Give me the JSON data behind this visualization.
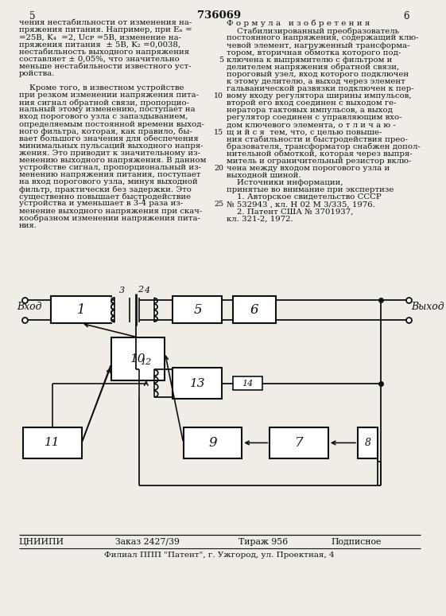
{
  "page_number_left": "5",
  "page_number_center": "736069",
  "page_number_right": "6",
  "bg_color": "#f0ede6",
  "text_color": "#1a1a1a",
  "footer_left": "ЦНИИПИ",
  "footer_order": "Заказ 2427/39",
  "footer_print": "Тираж 956",
  "footer_sign": "Подписное",
  "footer_line2": "Филиал ППП \"Патент\", г. Ужгород, ул. Проектная, 4",
  "left_col": [
    "чения нестабильности от изменения на-",
    "пряжения питания. Например, при Eₙ =",
    "=25В, K₄  =2, Uᴄᴘ =5В, изменение на-",
    "пряжения питания  ± 5В, K₂ =0,0038,",
    "нестабильность выходного напряжения",
    "составляет ± 0,05%, что значительно",
    "меньше нестабильности известного уст-",
    "ройства.",
    "",
    "    Кроме того, в известном устройстве",
    "при резком изменении напряжения пита-",
    "ния сигнал обратной связи, пропорцио-",
    "нальный этому изменению, поступает на",
    "вход порогового узла с запаздыванием,",
    "определяемым постоянной времени выход-",
    "ного фильтра, которая, как правило, бы-",
    "вает большого значения для обеспечения",
    "минимальных пульсаций выходного напря-",
    "жения. Это приводит к значительному из-",
    "менению выходного напряжения. В данном",
    "устройстве сигнал, пропорциональный из-",
    "менению напряжения питания, поступает",
    "на вход порогового узла, минуя выходной",
    "фильтр, практически без задержки. Это",
    "существенно повышает быстродействие",
    "устройства и уменьшает в 3-4 раза из-",
    "менение выходного напряжения при скач-",
    "кообразном изменении напряжения пита-",
    "ния."
  ],
  "right_header": "Ф о р м у л а   и з о б р е т е н и я",
  "right_col": [
    "    Стабилизированный преобразователь",
    "постоянного напряжения, содержащий клю-",
    "чевой элемент, нагруженный трансформа-",
    "тором, вторичная обмотка которого под-",
    "ключена к выпрямителю с фильтром и",
    "делителем напряжения обратной связи,",
    "пороговый узел, вход которого подключен",
    "к этому делителю, а выход через элемент",
    "гальванической развязки подключен к пер-",
    "вому входу регулятора ширины импульсов,",
    "второй его вход соединен с выходом ге-",
    "нератора тактовых импульсов, а выход",
    "регулятор соединен с управляющим вхо-",
    "дом ключевого элемента, о т л и ч а ю -",
    "щ и й с я  тем, что, с целью повыше-",
    "ния стабильности и быстродействия прео-",
    "бразователя, трансформатор снабжен допол-",
    "нительной обмоткой, которая через выпря-",
    "митель и ограничительный резистор вклю-",
    "чена между входом порогового узла и",
    "выходной шиной.",
    "    Источники информации,",
    "принятые во внимание при экспертизе",
    "    1. Авторское свидетельство СССР",
    "№ 532943 , кл. Н 02 М 3/335, 1976.",
    "    2. Патент США № 3701937,",
    "кл. 321-2, 1972."
  ],
  "line_nums": [
    4,
    9,
    14,
    19,
    24
  ],
  "line_num_vals": [
    "5",
    "10",
    "15",
    "20",
    "25"
  ]
}
